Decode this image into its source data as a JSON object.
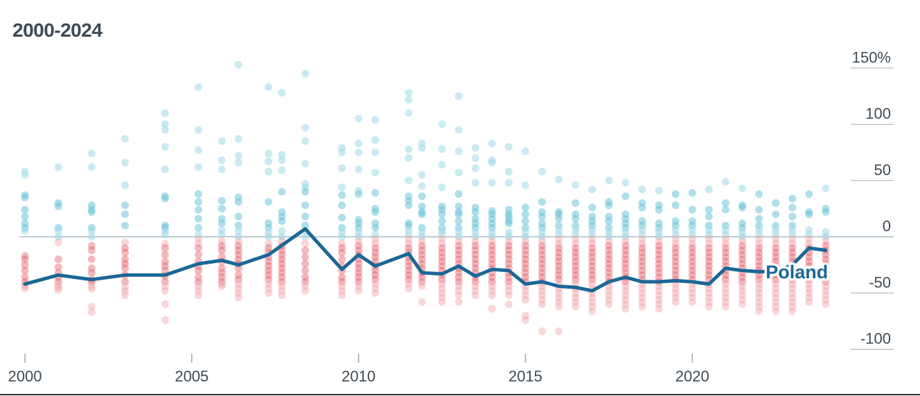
{
  "title": "2000-2024",
  "chart_data": {
    "type": "scatter",
    "title": "2000-2024",
    "xlim": [
      2000,
      2024.5
    ],
    "ylim": [
      -100,
      150
    ],
    "x_ticks": [
      {
        "value": 2000,
        "label": "2000"
      },
      {
        "value": 2005,
        "label": "2005"
      },
      {
        "value": 2010,
        "label": "2010"
      },
      {
        "value": 2015,
        "label": "2015"
      },
      {
        "value": 2020,
        "label": "2020"
      }
    ],
    "y_ticks": [
      {
        "value": 150,
        "label": "150%"
      },
      {
        "value": 100,
        "label": "100"
      },
      {
        "value": 50,
        "label": "50"
      },
      {
        "value": 0,
        "label": "0"
      },
      {
        "value": -50,
        "label": "-50"
      },
      {
        "value": -100,
        "label": "-100"
      }
    ],
    "colors": {
      "positive": "#9fd9e8",
      "positive_dense": "#6cc5db",
      "negative": "#f3a3a8",
      "negative_dense": "#e5636c",
      "highlight": "#1b6797",
      "axis_text": "#3d4a55",
      "zero_line": "#a9bcc7",
      "grid": "#9fb0bb"
    },
    "highlight_series": {
      "name": "Poland",
      "x": [
        2000,
        2001,
        2002,
        2003,
        2004.2,
        2005.2,
        2005.9,
        2006.4,
        2007.3,
        2008.4,
        2009.5,
        2010.0,
        2010.5,
        2011.5,
        2011.9,
        2012.5,
        2013.0,
        2013.5,
        2014.0,
        2014.5,
        2015.0,
        2015.5,
        2016.0,
        2016.5,
        2017.0,
        2017.5,
        2018.0,
        2018.5,
        2019.0,
        2019.5,
        2020.0,
        2020.5,
        2021.0,
        2021.5,
        2022.0,
        2022.5,
        2023.0,
        2023.5,
        2024.0
      ],
      "y": [
        -42,
        -34,
        -38,
        -34,
        -34,
        -24,
        -21,
        -25,
        -16,
        7,
        -29,
        -16,
        -26,
        -15,
        -32,
        -33,
        -26,
        -35,
        -29,
        -30,
        -42,
        -40,
        -44,
        -45,
        -48,
        -40,
        -36,
        -40,
        -40,
        -39,
        -40,
        -42,
        -28,
        -30,
        -31,
        -31,
        -25,
        -10,
        -12
      ]
    },
    "scatter_columns": [
      {
        "x": 2000.0,
        "y": [
          58,
          55,
          37,
          35,
          24,
          18,
          12,
          8,
          5,
          -17,
          -20,
          -25,
          -30,
          -36,
          -40,
          -42,
          -44,
          -46
        ]
      },
      {
        "x": 2001.0,
        "y": [
          62,
          30,
          27,
          8,
          5,
          0,
          -5,
          -20,
          -27,
          -32,
          -36,
          -40,
          -43,
          -45,
          -47
        ]
      },
      {
        "x": 2002.0,
        "y": [
          74,
          62,
          28,
          24,
          22,
          8,
          5,
          0,
          -8,
          -12,
          -20,
          -28,
          -32,
          -38,
          -40,
          -44,
          -46,
          -62,
          -67
        ]
      },
      {
        "x": 2003.0,
        "y": [
          87,
          66,
          46,
          28,
          20,
          10,
          -5,
          -10,
          -14,
          -20,
          -24,
          -28,
          -34,
          -40,
          -45,
          -48,
          -52
        ]
      },
      {
        "x": 2004.2,
        "y": [
          110,
          100,
          95,
          80,
          60,
          36,
          34,
          10,
          8,
          5,
          2,
          -6,
          -10,
          -16,
          -22,
          -26,
          -30,
          -35,
          -40,
          -44,
          -48,
          -60,
          -74
        ]
      },
      {
        "x": 2005.2,
        "y": [
          133,
          95,
          77,
          62,
          38,
          31,
          24,
          16,
          8,
          2,
          -2,
          -6,
          -10,
          -16,
          -22,
          -26,
          -30,
          -36,
          -40,
          -44,
          -48,
          -52
        ]
      },
      {
        "x": 2005.9,
        "y": [
          85,
          68,
          60,
          32,
          25,
          16,
          12,
          6,
          2,
          -4,
          -8,
          -12,
          -18,
          -22,
          -28,
          -32,
          -36,
          -40,
          -42,
          -44
        ]
      },
      {
        "x": 2006.4,
        "y": [
          153,
          87,
          72,
          66,
          35,
          31,
          18,
          10,
          5,
          0,
          -4,
          -8,
          -12,
          -16,
          -20,
          -24,
          -28,
          -34,
          -38,
          -42,
          -46,
          -50,
          -54
        ]
      },
      {
        "x": 2007.3,
        "y": [
          133,
          74,
          67,
          58,
          31,
          12,
          8,
          4,
          0,
          -6,
          -10,
          -14,
          -18,
          -22,
          -26,
          -30,
          -34,
          -38,
          -42,
          -46,
          -50
        ]
      },
      {
        "x": 2007.7,
        "y": [
          128,
          73,
          68,
          59,
          40,
          22,
          18,
          14,
          5,
          0,
          -4,
          -8,
          -12,
          -16,
          -20,
          -24,
          -28,
          -32,
          -36,
          -40,
          -44,
          -48,
          -52
        ]
      },
      {
        "x": 2008.4,
        "y": [
          145,
          97,
          85,
          65,
          47,
          44,
          40,
          28,
          18,
          10,
          5,
          0,
          -6,
          -12,
          -18,
          -24,
          -30,
          -36,
          -40,
          -44,
          -48
        ]
      },
      {
        "x": 2009.5,
        "y": [
          79,
          75,
          61,
          44,
          37,
          28,
          17,
          8,
          4,
          0,
          -6,
          -10,
          -14,
          -20,
          -26,
          -30,
          -36,
          -40,
          -44,
          -48,
          -52
        ]
      },
      {
        "x": 2010.0,
        "y": [
          105,
          83,
          75,
          60,
          41,
          38,
          15,
          12,
          8,
          4,
          0,
          -4,
          -8,
          -12,
          -16,
          -20,
          -24,
          -28,
          -32,
          -36,
          -40,
          -44,
          -48
        ]
      },
      {
        "x": 2010.5,
        "y": [
          104,
          86,
          75,
          57,
          39,
          25,
          22,
          12,
          8,
          2,
          -2,
          -6,
          -10,
          -14,
          -18,
          -22,
          -26,
          -30,
          -34,
          -38,
          -42,
          -46,
          -50
        ]
      },
      {
        "x": 2011.5,
        "y": [
          128,
          122,
          110,
          78,
          70,
          50,
          36,
          32,
          28,
          12,
          10,
          6,
          2,
          -2,
          -6,
          -10,
          -14,
          -18,
          -22,
          -26,
          -30,
          -34,
          -38,
          -42,
          -46
        ]
      },
      {
        "x": 2011.9,
        "y": [
          83,
          79,
          55,
          45,
          36,
          27,
          22,
          20,
          8,
          4,
          0,
          -4,
          -8,
          -12,
          -16,
          -20,
          -24,
          -28,
          -32,
          -36,
          -40,
          -44,
          -58
        ]
      },
      {
        "x": 2012.5,
        "y": [
          100,
          78,
          64,
          44,
          27,
          24,
          20,
          14,
          8,
          5,
          2,
          -2,
          -6,
          -10,
          -14,
          -18,
          -22,
          -26,
          -30,
          -34,
          -38,
          -42,
          -46,
          -50,
          -54,
          -58
        ]
      },
      {
        "x": 2013.0,
        "y": [
          125,
          95,
          76,
          57,
          38,
          27,
          22,
          20,
          14,
          8,
          4,
          0,
          -4,
          -8,
          -12,
          -16,
          -20,
          -24,
          -28,
          -32,
          -36,
          -40,
          -44,
          -48,
          -52,
          -58
        ]
      },
      {
        "x": 2013.5,
        "y": [
          79,
          70,
          61,
          48,
          26,
          22,
          16,
          12,
          8,
          4,
          0,
          -4,
          -8,
          -12,
          -16,
          -20,
          -24,
          -28,
          -32,
          -36,
          -40,
          -44,
          -48,
          -52
        ]
      },
      {
        "x": 2014.0,
        "y": [
          83,
          68,
          66,
          48,
          23,
          20,
          16,
          12,
          8,
          4,
          0,
          -4,
          -8,
          -12,
          -16,
          -20,
          -24,
          -28,
          -32,
          -36,
          -40,
          -44,
          -48,
          -52,
          -64
        ]
      },
      {
        "x": 2014.5,
        "y": [
          80,
          58,
          48,
          24,
          20,
          18,
          14,
          12,
          4,
          0,
          -4,
          -8,
          -12,
          -16,
          -20,
          -24,
          -28,
          -32,
          -36,
          -40,
          -44,
          -48,
          -52,
          -60
        ]
      },
      {
        "x": 2015.0,
        "y": [
          76,
          46,
          26,
          20,
          14,
          8,
          4,
          0,
          -4,
          -8,
          -12,
          -16,
          -20,
          -24,
          -28,
          -32,
          -36,
          -40,
          -44,
          -48,
          -52,
          -56,
          -70,
          -74
        ]
      },
      {
        "x": 2015.5,
        "y": [
          58,
          31,
          22,
          18,
          12,
          8,
          4,
          0,
          -4,
          -8,
          -12,
          -16,
          -20,
          -24,
          -28,
          -32,
          -36,
          -40,
          -44,
          -48,
          -52,
          -56,
          -60,
          -84
        ]
      },
      {
        "x": 2016.0,
        "y": [
          51,
          22,
          20,
          16,
          10,
          6,
          2,
          -2,
          -6,
          -10,
          -14,
          -18,
          -22,
          -26,
          -30,
          -34,
          -38,
          -42,
          -46,
          -50,
          -54,
          -58,
          -62,
          -84
        ]
      },
      {
        "x": 2016.5,
        "y": [
          46,
          30,
          20,
          16,
          10,
          6,
          2,
          -2,
          -6,
          -10,
          -14,
          -18,
          -22,
          -26,
          -30,
          -34,
          -38,
          -42,
          -46,
          -50,
          -54,
          -58,
          -62
        ]
      },
      {
        "x": 2017.0,
        "y": [
          42,
          26,
          18,
          14,
          10,
          6,
          2,
          -2,
          -6,
          -10,
          -14,
          -18,
          -22,
          -26,
          -30,
          -34,
          -38,
          -42,
          -46,
          -50,
          -54,
          -58,
          -62,
          -66
        ]
      },
      {
        "x": 2017.5,
        "y": [
          50,
          31,
          28,
          18,
          14,
          8,
          4,
          0,
          -4,
          -8,
          -12,
          -16,
          -20,
          -24,
          -28,
          -32,
          -36,
          -40,
          -44,
          -48,
          -52,
          -56,
          -60
        ]
      },
      {
        "x": 2018.0,
        "y": [
          48,
          36,
          20,
          16,
          12,
          8,
          4,
          0,
          -4,
          -8,
          -12,
          -16,
          -20,
          -24,
          -28,
          -32,
          -36,
          -40,
          -44,
          -48,
          -52,
          -56,
          -60,
          -64
        ]
      },
      {
        "x": 2018.5,
        "y": [
          42,
          30,
          26,
          14,
          10,
          6,
          2,
          -2,
          -6,
          -10,
          -14,
          -18,
          -22,
          -26,
          -30,
          -34,
          -38,
          -42,
          -46,
          -50,
          -54,
          -58,
          -62
        ]
      },
      {
        "x": 2019.0,
        "y": [
          41,
          28,
          24,
          12,
          8,
          4,
          0,
          -4,
          -8,
          -12,
          -16,
          -20,
          -24,
          -28,
          -32,
          -36,
          -40,
          -44,
          -48,
          -52,
          -56,
          -60,
          -64
        ]
      },
      {
        "x": 2019.5,
        "y": [
          38,
          28,
          14,
          10,
          6,
          2,
          -2,
          -6,
          -10,
          -14,
          -18,
          -22,
          -26,
          -30,
          -34,
          -38,
          -42,
          -46,
          -50,
          -54,
          -58
        ]
      },
      {
        "x": 2020.0,
        "y": [
          39,
          24,
          14,
          10,
          6,
          2,
          -2,
          -6,
          -10,
          -14,
          -18,
          -22,
          -26,
          -30,
          -34,
          -38,
          -42,
          -46,
          -50,
          -54,
          -58
        ]
      },
      {
        "x": 2020.5,
        "y": [
          42,
          24,
          18,
          10,
          6,
          2,
          -2,
          -6,
          -10,
          -14,
          -18,
          -22,
          -26,
          -30,
          -34,
          -38,
          -42,
          -46,
          -50,
          -54,
          -58,
          -62
        ]
      },
      {
        "x": 2021.0,
        "y": [
          49,
          30,
          24,
          10,
          6,
          2,
          -2,
          -6,
          -10,
          -14,
          -18,
          -22,
          -26,
          -30,
          -34,
          -38,
          -42,
          -46,
          -50,
          -54,
          -58,
          -62
        ]
      },
      {
        "x": 2021.5,
        "y": [
          43,
          28,
          26,
          12,
          8,
          4,
          0,
          -4,
          -8,
          -12,
          -16,
          -20,
          -24,
          -28,
          -32,
          -36,
          -40,
          -44,
          -48,
          -52,
          -56,
          -60
        ]
      },
      {
        "x": 2022.0,
        "y": [
          38,
          24,
          16,
          10,
          6,
          2,
          -2,
          -6,
          -10,
          -14,
          -18,
          -22,
          -26,
          -30,
          -34,
          -38,
          -42,
          -46,
          -50,
          -54,
          -58,
          -62,
          -66
        ]
      },
      {
        "x": 2022.5,
        "y": [
          30,
          20,
          10,
          6,
          2,
          -2,
          -6,
          -10,
          -14,
          -18,
          -22,
          -26,
          -30,
          -34,
          -38,
          -42,
          -46,
          -50,
          -54,
          -58,
          -62,
          -66
        ]
      },
      {
        "x": 2023.0,
        "y": [
          34,
          26,
          18,
          10,
          6,
          2,
          -2,
          -6,
          -10,
          -14,
          -18,
          -22,
          -26,
          -30,
          -34,
          -38,
          -42,
          -46,
          -50,
          -54,
          -58,
          -62,
          -66
        ]
      },
      {
        "x": 2023.5,
        "y": [
          38,
          22,
          20,
          6,
          2,
          -2,
          -6,
          -10,
          -14,
          -18,
          -22,
          -26,
          -30,
          -34,
          -38,
          -42,
          -46,
          -50,
          -54,
          -58
        ]
      },
      {
        "x": 2024.0,
        "y": [
          43,
          25,
          22,
          4,
          0,
          -4,
          -8,
          -12,
          -16,
          -20,
          -24,
          -28,
          -32,
          -36,
          -40,
          -44,
          -48,
          -52,
          -56,
          -60
        ]
      }
    ]
  }
}
